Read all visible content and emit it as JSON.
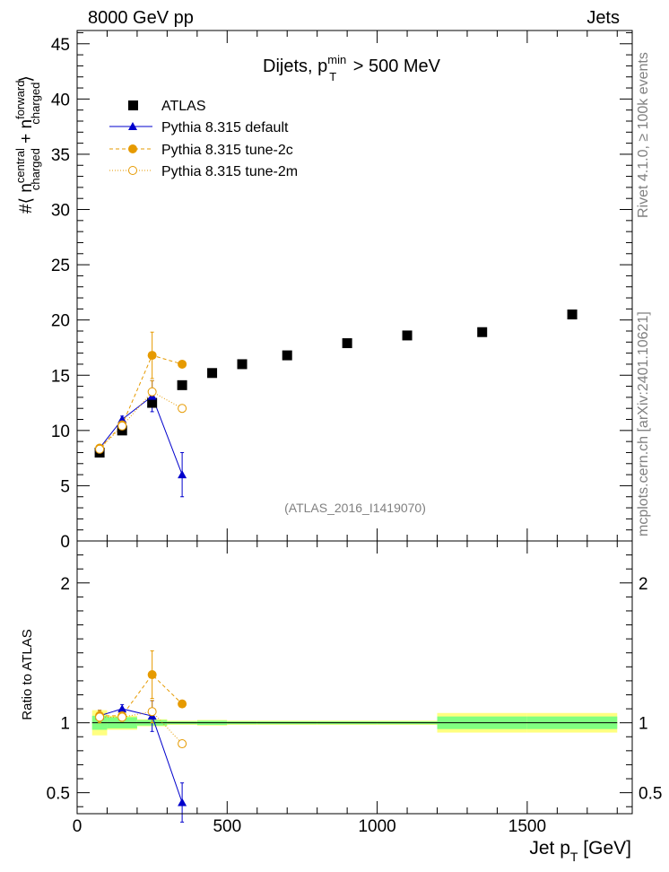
{
  "header": {
    "left": "8000 GeV pp",
    "right": "Jets"
  },
  "side_labels": {
    "rivet": "Rivet 4.1.0, ≥ 100k events",
    "mcplots": "mcplots.cern.ch [arXiv:2401.10621]"
  },
  "chart_data": {
    "type": "scatter",
    "title": {
      "prefix": "Dijets, p",
      "sup": "min",
      "sub": "T",
      "suffix": " > 500 MeV"
    },
    "analysis_label": "(ATLAS_2016_I1419070)",
    "xlabel": {
      "main": "Jet p",
      "sub": "T",
      "unit": " [GeV]"
    },
    "ylabel_main": {
      "open": "#⟨ n",
      "sup1": "central",
      "sub1": "charged",
      "plus": " + n",
      "sup2": "forward",
      "sub2": "charged",
      "close": "⟩"
    },
    "ylabel_ratio": "Ratio to ATLAS",
    "xlim": [
      0,
      1850
    ],
    "ylim_main": [
      0,
      46.2
    ],
    "ylim_ratio": [
      0.35,
      2.3
    ],
    "x_ticks": [
      0,
      500,
      1000,
      1500
    ],
    "y_ticks_main": [
      0,
      5,
      10,
      15,
      20,
      25,
      30,
      35,
      40,
      45
    ],
    "y_ticks_ratio": [
      0.5,
      1,
      2
    ],
    "legend": [
      {
        "name": "ATLAS",
        "marker": "square"
      },
      {
        "name": "Pythia 8.315 default",
        "marker": "triangle"
      },
      {
        "name": "Pythia 8.315 tune-2c",
        "marker": "circle"
      },
      {
        "name": "Pythia 8.315 tune-2m",
        "marker": "open-circle"
      }
    ],
    "atlas": {
      "x": [
        75,
        150,
        250,
        350,
        450,
        550,
        700,
        900,
        1100,
        1350,
        1650
      ],
      "y": [
        8.0,
        10.0,
        12.5,
        14.1,
        15.2,
        16.0,
        16.8,
        17.9,
        18.6,
        18.9,
        20.5
      ],
      "bins": [
        [
          50,
          100
        ],
        [
          100,
          200
        ],
        [
          200,
          300
        ],
        [
          300,
          400
        ],
        [
          400,
          500
        ],
        [
          500,
          600
        ],
        [
          600,
          800
        ],
        [
          800,
          1000
        ],
        [
          1000,
          1200
        ],
        [
          1200,
          1500
        ],
        [
          1500,
          1800
        ]
      ],
      "band_stat": [
        0.05,
        0.04,
        0.02,
        0.01,
        0.015,
        0.01,
        0.01,
        0.01,
        0.01,
        0.045,
        0.045
      ],
      "band_total": [
        0.09,
        0.05,
        0.025,
        0.015,
        0.02,
        0.015,
        0.015,
        0.015,
        0.015,
        0.07,
        0.07
      ]
    },
    "series": [
      {
        "name": "Pythia 8.315 default",
        "color": "#0000cc",
        "style": "solid",
        "marker": "triangle",
        "x": [
          75,
          150,
          250,
          350
        ],
        "y": [
          8.4,
          11.0,
          13.1,
          6.0
        ],
        "err": [
          0.3,
          0.3,
          1.4,
          2.0
        ],
        "ratio": [
          1.05,
          1.1,
          1.048,
          0.43
        ],
        "ratio_err": [
          0.04,
          0.03,
          0.11,
          0.14
        ]
      },
      {
        "name": "Pythia 8.315 tune-2c",
        "color": "#e69a00",
        "style": "dashed",
        "marker": "circle",
        "x": [
          75,
          150,
          250,
          350
        ],
        "y": [
          8.4,
          10.5,
          16.8,
          16.0
        ],
        "err": [
          0.3,
          0.3,
          2.1,
          0.2
        ],
        "ratio": [
          1.05,
          1.05,
          1.344,
          1.135
        ],
        "ratio_err": [
          0.04,
          0.03,
          0.17,
          0.02
        ]
      },
      {
        "name": "Pythia 8.315 tune-2m",
        "color": "#e69a00",
        "style": "dotted",
        "marker": "open-circle",
        "x": [
          75,
          150,
          250,
          350
        ],
        "y": [
          8.3,
          10.4,
          13.5,
          12.0
        ],
        "err": [
          0.3,
          0.3,
          1.0,
          0.2
        ],
        "ratio": [
          1.04,
          1.04,
          1.08,
          0.85
        ],
        "ratio_err": [
          0.04,
          0.03,
          0.08,
          0.02
        ]
      }
    ],
    "colors": {
      "band_total": "#ffff80",
      "band_stat": "#80ff80",
      "ratio_line": "#000000"
    }
  }
}
